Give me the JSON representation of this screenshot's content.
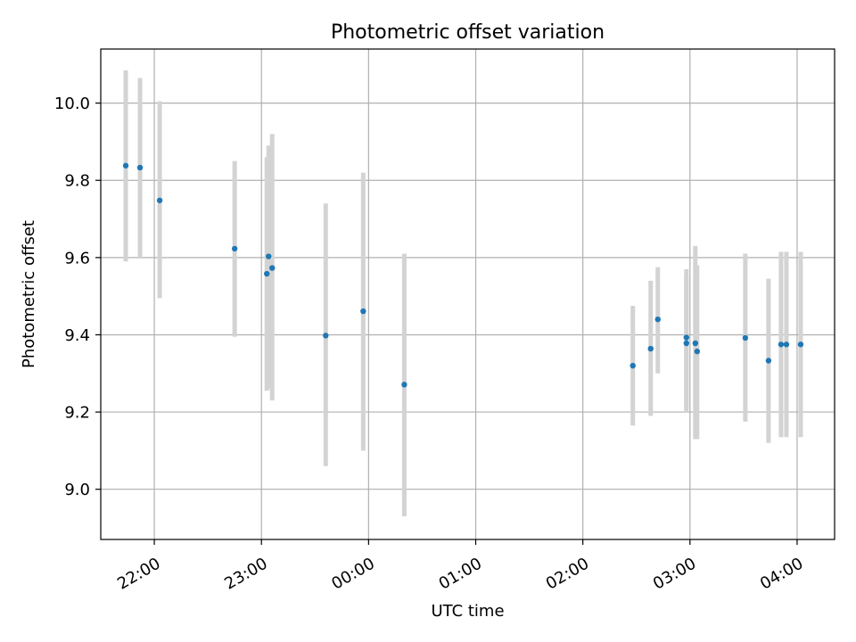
{
  "chart_data": {
    "type": "scatter",
    "title": "Photometric offset variation",
    "xlabel": "UTC time",
    "ylabel": "Photometric offset",
    "x_axis_type": "time",
    "xlim": [
      "21:30",
      "04:21"
    ],
    "ylim": [
      8.87,
      10.14
    ],
    "yticks": [
      9.0,
      9.2,
      9.4,
      9.6,
      9.8,
      10.0
    ],
    "ytick_labels": [
      "9.0",
      "9.2",
      "9.4",
      "9.6",
      "9.8",
      "10.0"
    ],
    "xticks": [
      "22:00",
      "23:00",
      "00:00",
      "01:00",
      "02:00",
      "03:00",
      "04:00"
    ],
    "xtick_labels": [
      "22:00",
      "23:00",
      "00:00",
      "01:00",
      "02:00",
      "03:00",
      "04:00"
    ],
    "grid": true,
    "marker_color": "#1f77b4",
    "errorbar_color": "#d3d3d3",
    "points": [
      {
        "t": "21:44",
        "y": 9.838,
        "lo": 9.59,
        "hi": 10.085
      },
      {
        "t": "21:52",
        "y": 9.833,
        "lo": 9.6,
        "hi": 10.065
      },
      {
        "t": "22:03",
        "y": 9.748,
        "lo": 9.495,
        "hi": 10.005
      },
      {
        "t": "22:45",
        "y": 9.623,
        "lo": 9.395,
        "hi": 9.85
      },
      {
        "t": "23:03",
        "y": 9.558,
        "lo": 9.255,
        "hi": 9.86
      },
      {
        "t": "23:04",
        "y": 9.603,
        "lo": 9.26,
        "hi": 9.89
      },
      {
        "t": "23:06",
        "y": 9.573,
        "lo": 9.23,
        "hi": 9.92
      },
      {
        "t": "23:36",
        "y": 9.398,
        "lo": 9.06,
        "hi": 9.74
      },
      {
        "t": "23:57",
        "y": 9.461,
        "lo": 9.1,
        "hi": 9.82
      },
      {
        "t": "00:20",
        "y": 9.271,
        "lo": 8.93,
        "hi": 9.61
      },
      {
        "t": "02:28",
        "y": 9.32,
        "lo": 9.165,
        "hi": 9.475
      },
      {
        "t": "02:38",
        "y": 9.364,
        "lo": 9.19,
        "hi": 9.54
      },
      {
        "t": "02:42",
        "y": 9.44,
        "lo": 9.3,
        "hi": 9.575
      },
      {
        "t": "02:58",
        "y": 9.393,
        "lo": 9.2,
        "hi": 9.57
      },
      {
        "t": "02:58",
        "y": 9.378,
        "lo": 9.21,
        "hi": 9.55
      },
      {
        "t": "03:03",
        "y": 9.378,
        "lo": 9.13,
        "hi": 9.63
      },
      {
        "t": "03:04",
        "y": 9.357,
        "lo": 9.13,
        "hi": 9.58
      },
      {
        "t": "03:31",
        "y": 9.392,
        "lo": 9.175,
        "hi": 9.61
      },
      {
        "t": "03:44",
        "y": 9.333,
        "lo": 9.12,
        "hi": 9.545
      },
      {
        "t": "03:51",
        "y": 9.375,
        "lo": 9.135,
        "hi": 9.615
      },
      {
        "t": "03:54",
        "y": 9.375,
        "lo": 9.135,
        "hi": 9.615
      },
      {
        "t": "04:02",
        "y": 9.375,
        "lo": 9.135,
        "hi": 9.615
      }
    ]
  }
}
